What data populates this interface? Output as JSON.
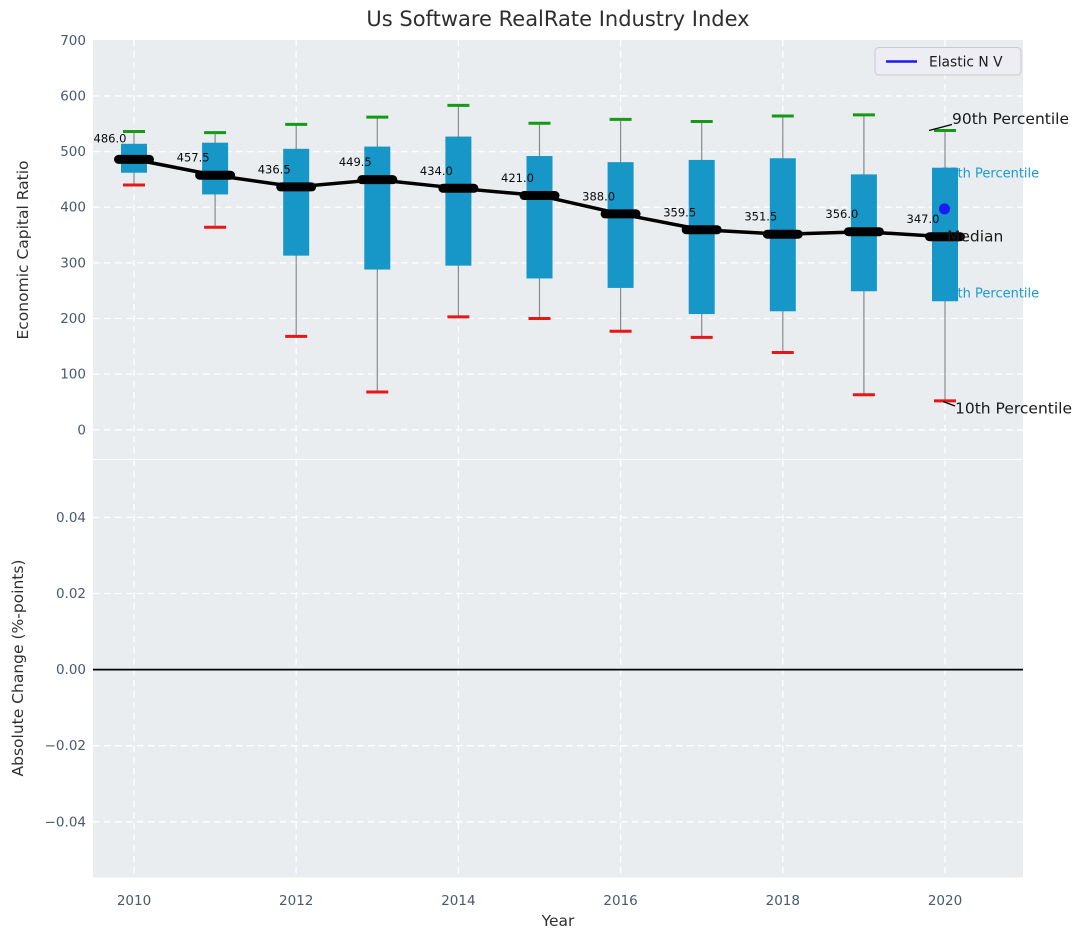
{
  "title": "Us Software RealRate Industry Index",
  "legend": {
    "label": "Elastic N V"
  },
  "annotations": {
    "p90": "90th Percentile",
    "p75": "75th Percentile",
    "median": "Median",
    "p25": "25th Percentile",
    "p10": "10th Percentile"
  },
  "axes": {
    "top": {
      "ylabel": "Economic Capital Ratio",
      "ytick_labels": [
        "700",
        "600",
        "500",
        "400",
        "300",
        "200",
        "100",
        "0"
      ],
      "ytick_values": [
        700,
        600,
        500,
        400,
        300,
        200,
        100,
        0
      ]
    },
    "bottom": {
      "ylabel": "Absolute Change (%-points)",
      "ytick_labels": [
        "0.04",
        "0.02",
        "0.00",
        "−0.02",
        "−0.04"
      ],
      "ytick_values": [
        0.04,
        0.02,
        0,
        -0.02,
        -0.04
      ]
    },
    "x": {
      "label": "Year",
      "tick_labels": [
        "2010",
        "2012",
        "2014",
        "2016",
        "2018",
        "2020"
      ],
      "tick_values": [
        2010,
        2012,
        2014,
        2016,
        2018,
        2020
      ]
    }
  },
  "colors": {
    "box": "#1796c8",
    "whisker": "#8a8a8a",
    "cap_high": "#159a15",
    "cap_low": "#e81616",
    "median": "#000000",
    "elastic": "#1b1bf5",
    "panel_bg": "#e9edef",
    "grid": "#ffffff",
    "tick": "#475a6e",
    "label": "#303030",
    "cyan_text": "#1b9ad1",
    "annotation_text": "#1a1a1a"
  },
  "chart_data": [
    {
      "type": "boxplot",
      "title": "Us Software RealRate Industry Index",
      "xlabel": "Year",
      "ylabel": "Economic Capital Ratio",
      "ylim": [
        0,
        700
      ],
      "grid": true,
      "legend": "Elastic N V",
      "legend_position": "upper right",
      "years": [
        2010,
        2011,
        2012,
        2013,
        2014,
        2015,
        2016,
        2017,
        2018,
        2019,
        2020
      ],
      "series": {
        "median": [
          486.0,
          457.5,
          436.5,
          449.5,
          434.0,
          421.0,
          388.0,
          359.5,
          351.5,
          356.0,
          347.0
        ],
        "p75": [
          514,
          516,
          505,
          509,
          527,
          492,
          481,
          485,
          488,
          459,
          471
        ],
        "p25": [
          462,
          423,
          313,
          288,
          295,
          272,
          255,
          208,
          213,
          249,
          231
        ],
        "p90": [
          536,
          534,
          549,
          562,
          583,
          551,
          558,
          554,
          564,
          566,
          538
        ],
        "p10": [
          440,
          364,
          168,
          68,
          203,
          200,
          177,
          166,
          139,
          63,
          52
        ]
      },
      "median_labels": [
        "486.0",
        "457.5",
        "436.5",
        "449.5",
        "434.0",
        "421.0",
        "388.0",
        "359.5",
        "351.5",
        "356.0",
        "347.0"
      ],
      "elastic_point": {
        "year": 2020,
        "value": 397
      }
    },
    {
      "type": "line",
      "xlabel": "Year",
      "ylabel": "Absolute Change (%-points)",
      "ylim": [
        -0.054,
        0.055
      ],
      "yticks": [
        0.04,
        0.02,
        0,
        -0.02,
        -0.04
      ],
      "zero_line": 0,
      "series": []
    }
  ]
}
